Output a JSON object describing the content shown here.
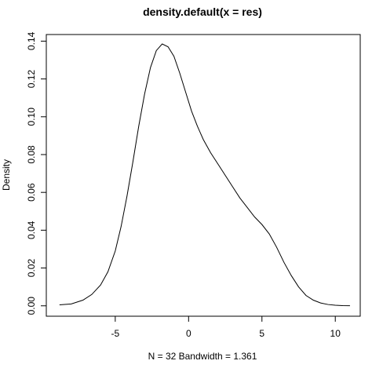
{
  "chart_data": {
    "type": "line",
    "title": "density.default(x = res)",
    "xlabel": "N = 32   Bandwidth = 1.361",
    "ylabel": "Density",
    "xlim": [
      -9.7,
      11.7
    ],
    "ylim": [
      -0.0055,
      0.1435
    ],
    "x_ticks": [
      -5,
      0,
      5,
      10
    ],
    "x_tick_labels": [
      "-5",
      "0",
      "5",
      "10"
    ],
    "y_ticks": [
      0.0,
      0.02,
      0.04,
      0.06,
      0.08,
      0.1,
      0.12,
      0.14
    ],
    "y_tick_labels": [
      "0.00",
      "0.02",
      "0.04",
      "0.06",
      "0.08",
      "0.10",
      "0.12",
      "0.14"
    ],
    "grid": false,
    "series": [
      {
        "x": [
          -8.8,
          -8.0,
          -7.2,
          -6.6,
          -6.0,
          -5.5,
          -5.0,
          -4.6,
          -4.2,
          -3.8,
          -3.4,
          -3.0,
          -2.6,
          -2.2,
          -1.8,
          -1.4,
          -1.0,
          -0.6,
          -0.2,
          0.2,
          0.6,
          1.0,
          1.5,
          2.0,
          2.5,
          3.0,
          3.5,
          4.0,
          4.5,
          5.0,
          5.5,
          6.0,
          6.5,
          7.0,
          7.5,
          8.0,
          8.5,
          9.0,
          9.5,
          10.0,
          10.5,
          11.0
        ],
        "y": [
          0.0005,
          0.001,
          0.003,
          0.006,
          0.011,
          0.018,
          0.029,
          0.042,
          0.058,
          0.076,
          0.095,
          0.112,
          0.126,
          0.135,
          0.1385,
          0.137,
          0.132,
          0.123,
          0.113,
          0.103,
          0.095,
          0.088,
          0.081,
          0.075,
          0.069,
          0.063,
          0.057,
          0.052,
          0.047,
          0.043,
          0.038,
          0.031,
          0.023,
          0.016,
          0.01,
          0.0055,
          0.003,
          0.0015,
          0.0007,
          0.0003,
          0.0001,
          5e-05
        ]
      }
    ]
  }
}
